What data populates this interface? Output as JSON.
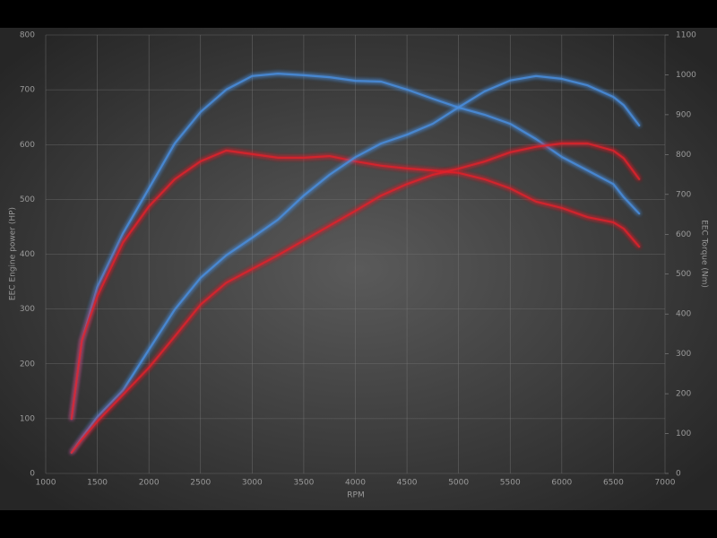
{
  "chart_data": {
    "type": "line",
    "x_label": "RPM",
    "y_label": "EEC Engine power (HP)",
    "y2_label": "EEC Torque (Nm)",
    "x": [
      1250,
      1350,
      1500,
      1750,
      2000,
      2250,
      2500,
      2750,
      3000,
      3250,
      3500,
      3750,
      4000,
      4250,
      4500,
      4750,
      5000,
      5250,
      5500,
      5750,
      6000,
      6250,
      6500,
      6600,
      6750
    ],
    "series": [
      {
        "color": "#4a8fe0",
        "axis": "y2",
        "values": [
          137,
          333,
          468,
          603,
          715,
          828,
          907,
          963,
          997,
          1003,
          999,
          994,
          985,
          983,
          963,
          940,
          918,
          900,
          877,
          839,
          794,
          760,
          726,
          693,
          652
        ]
      },
      {
        "color": "#e0202c",
        "axis": "y2",
        "values": [
          137,
          333,
          445,
          580,
          670,
          738,
          783,
          810,
          801,
          792,
          792,
          796,
          783,
          772,
          765,
          760,
          754,
          738,
          715,
          682,
          666,
          643,
          630,
          614,
          569
        ]
      },
      {
        "color": "#4a8fe0",
        "values": [
          38,
          65,
          103,
          152,
          226,
          299,
          357,
          398,
          430,
          463,
          507,
          545,
          577,
          602,
          618,
          638,
          668,
          697,
          717,
          725,
          720,
          708,
          687,
          672,
          635
        ]
      },
      {
        "color": "#e0202c",
        "values": [
          38,
          62,
          95,
          144,
          193,
          250,
          308,
          348,
          373,
          398,
          425,
          452,
          479,
          507,
          528,
          545,
          556,
          569,
          586,
          596,
          602,
          602,
          589,
          575,
          537
        ]
      }
    ],
    "xlim": [
      1000,
      7000
    ],
    "xticks": [
      1000,
      1500,
      2000,
      2500,
      3000,
      3500,
      4000,
      4500,
      5000,
      5500,
      6000,
      6500,
      7000
    ],
    "ylim": [
      0,
      800
    ],
    "yticks": [
      0,
      100,
      200,
      300,
      400,
      500,
      600,
      700,
      800
    ],
    "y2lim": [
      0,
      1100
    ],
    "y2ticks": [
      0,
      100,
      200,
      300,
      400,
      500,
      600,
      700,
      800,
      900,
      1000,
      1100
    ],
    "grid": true
  }
}
